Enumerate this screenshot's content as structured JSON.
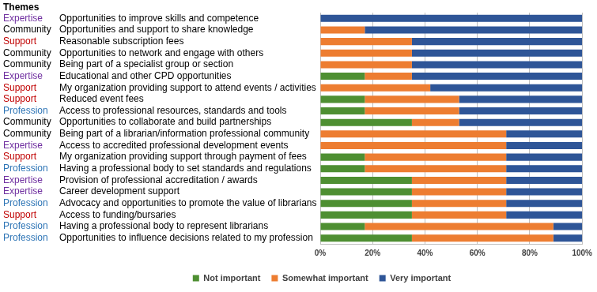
{
  "chart_data": {
    "type": "bar",
    "orientation": "horizontal",
    "stacked": true,
    "grid": true,
    "legend": "bottom",
    "themes_header": "Themes",
    "themes": [
      {
        "label": "Expertise",
        "color": "#7030a0"
      },
      {
        "label": "Community",
        "color": "#000000"
      },
      {
        "label": "Support",
        "color": "#c00000"
      },
      {
        "label": "Community",
        "color": "#000000"
      },
      {
        "label": "Community",
        "color": "#000000"
      },
      {
        "label": "Expertise",
        "color": "#7030a0"
      },
      {
        "label": "Support",
        "color": "#c00000"
      },
      {
        "label": "Support",
        "color": "#c00000"
      },
      {
        "label": "Profession",
        "color": "#2e75b6"
      },
      {
        "label": "Community",
        "color": "#000000"
      },
      {
        "label": "Community",
        "color": "#000000"
      },
      {
        "label": "Expertise",
        "color": "#7030a0"
      },
      {
        "label": "Support",
        "color": "#c00000"
      },
      {
        "label": "Profession",
        "color": "#2e75b6"
      },
      {
        "label": "Expertise",
        "color": "#7030a0"
      },
      {
        "label": "Expertise",
        "color": "#7030a0"
      },
      {
        "label": "Profession",
        "color": "#2e75b6"
      },
      {
        "label": "Support",
        "color": "#c00000"
      },
      {
        "label": "Profession",
        "color": "#2e75b6"
      },
      {
        "label": "Profession",
        "color": "#2e75b6"
      }
    ],
    "categories": [
      "Opportunities to improve skills and competence",
      "Opportunities and support to share knowledge",
      "Reasonable subscription fees",
      "Opportunities to network and engage with others",
      "Being part of a specialist group or section",
      "Educational and other CPD opportunities",
      "My organization providing support to attend events / activities",
      "Reduced event fees",
      "Access to professional resources, standards and tools",
      "Opportunities to collaborate and build partnerships",
      "Being part of a librarian/information professional community",
      "Access to accredited professional development events",
      "My organization providing support through payment of fees",
      "Having a professional body to set standards and regulations",
      "Provision of professional accreditation / awards",
      "Career development support",
      "Advocacy and opportunities to promote the value of librarians",
      "Access to funding/bursaries",
      "Having a professional body to represent librarians",
      "Opportunities to influence decisions related to my profession"
    ],
    "series": [
      {
        "name": "Not important",
        "color": "#4e8f32",
        "values": [
          0,
          0,
          0,
          0,
          0,
          17,
          0,
          17,
          17,
          35,
          0,
          0,
          17,
          17,
          35,
          35,
          35,
          35,
          17,
          35
        ]
      },
      {
        "name": "Somewhat important",
        "color": "#ed7d31",
        "values": [
          0,
          17,
          35,
          35,
          35,
          18,
          42,
          36,
          36,
          18,
          71,
          71,
          54,
          54,
          36,
          36,
          36,
          36,
          72,
          54
        ]
      },
      {
        "name": "Very important",
        "color": "#2e5597",
        "values": [
          100,
          83,
          65,
          65,
          65,
          65,
          58,
          47,
          47,
          47,
          29,
          29,
          29,
          29,
          29,
          29,
          29,
          29,
          11,
          11
        ]
      }
    ],
    "xlim": [
      0,
      100
    ],
    "xticks": [
      {
        "value": 0,
        "label": "0%"
      },
      {
        "value": 20,
        "label": "20%"
      },
      {
        "value": 40,
        "label": "40%"
      },
      {
        "value": 60,
        "label": "60%"
      },
      {
        "value": 80,
        "label": "80%"
      },
      {
        "value": 100,
        "label": "100%"
      }
    ]
  }
}
